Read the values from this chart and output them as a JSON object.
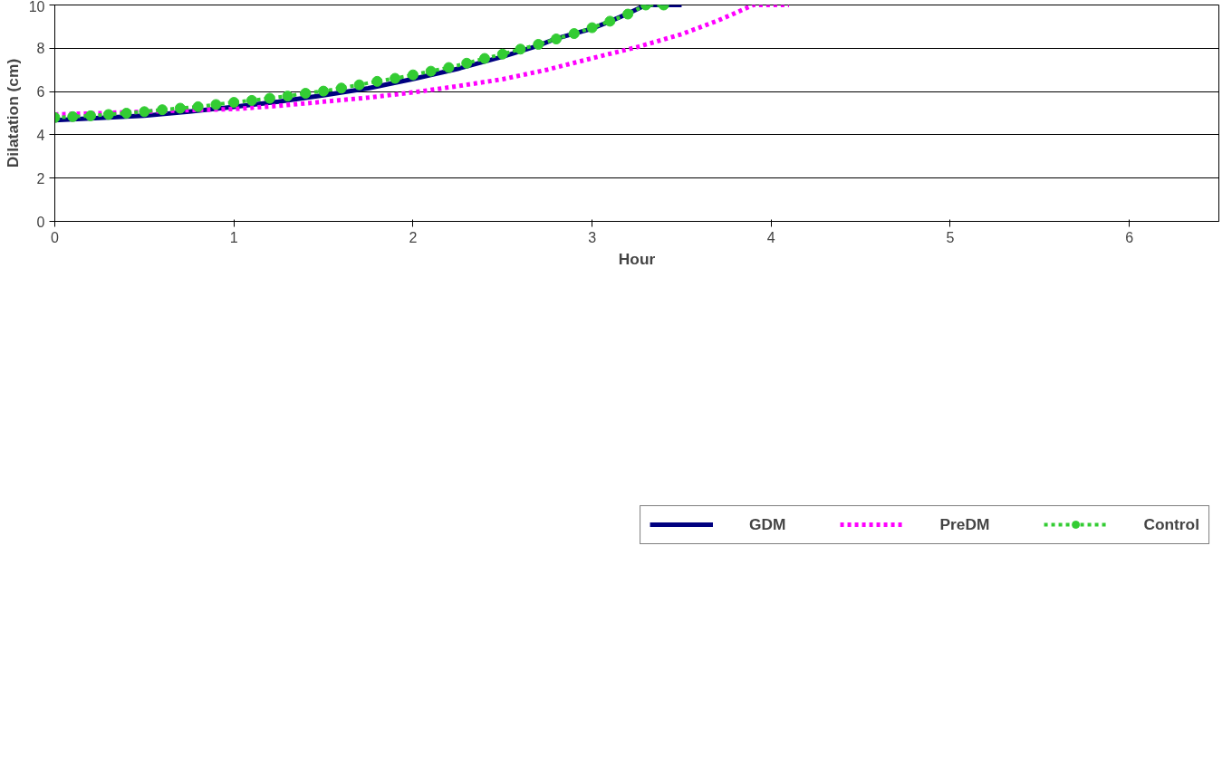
{
  "chart_data": {
    "type": "line",
    "xlabel": "Hour",
    "ylabel": "Dilatation (cm)",
    "xlim": [
      0,
      6.5
    ],
    "ylim": [
      0,
      10
    ],
    "xticks": [
      0,
      1,
      2,
      3,
      4,
      5,
      6
    ],
    "yticks": [
      0,
      2,
      4,
      6,
      8,
      10
    ],
    "grid": "y",
    "legend": "bottom",
    "series": [
      {
        "name": "GDM",
        "color": "#000080",
        "line_style": "solid",
        "marker": "none",
        "x": [
          0,
          0.25,
          0.5,
          0.75,
          1.0,
          1.25,
          1.5,
          1.75,
          2.0,
          2.25,
          2.5,
          2.7,
          2.8,
          3.0,
          3.1,
          3.2,
          3.3,
          3.5
        ],
        "values": [
          4.68,
          4.78,
          4.88,
          5.07,
          5.29,
          5.53,
          5.83,
          6.15,
          6.58,
          7.05,
          7.61,
          8.12,
          8.45,
          8.91,
          9.24,
          9.6,
          10,
          10
        ]
      },
      {
        "name": "PreDM",
        "color": "#ff00ff",
        "line_style": "dotted",
        "marker": "none",
        "x": [
          0,
          0.25,
          0.5,
          0.75,
          1.0,
          1.25,
          1.5,
          1.75,
          2.0,
          2.25,
          2.5,
          2.75,
          3.0,
          3.25,
          3.5,
          3.7,
          3.8,
          3.9,
          4.1
        ],
        "values": [
          4.94,
          5.0,
          5.07,
          5.14,
          5.19,
          5.34,
          5.53,
          5.72,
          5.96,
          6.25,
          6.57,
          7.01,
          7.54,
          8.05,
          8.65,
          9.27,
          9.63,
          10,
          10
        ]
      },
      {
        "name": "Control",
        "color": "#33cc33",
        "line_style": "dotted",
        "marker": "circle",
        "x": [
          0,
          0.1,
          0.2,
          0.3,
          0.4,
          0.5,
          0.6,
          0.7,
          0.8,
          0.9,
          1.0,
          1.1,
          1.2,
          1.3,
          1.4,
          1.5,
          1.6,
          1.7,
          1.8,
          1.9,
          2.0,
          2.1,
          2.2,
          2.3,
          2.4,
          2.5,
          2.6,
          2.7,
          2.8,
          2.9,
          3.0,
          3.1,
          3.2,
          3.3,
          3.4
        ],
        "values": [
          4.8,
          4.84,
          4.88,
          4.94,
          5.0,
          5.07,
          5.16,
          5.23,
          5.3,
          5.4,
          5.5,
          5.59,
          5.69,
          5.79,
          5.92,
          6.02,
          6.16,
          6.31,
          6.47,
          6.61,
          6.77,
          6.94,
          7.11,
          7.31,
          7.53,
          7.73,
          7.96,
          8.18,
          8.43,
          8.68,
          8.95,
          9.25,
          9.58,
          10,
          10
        ]
      }
    ]
  }
}
